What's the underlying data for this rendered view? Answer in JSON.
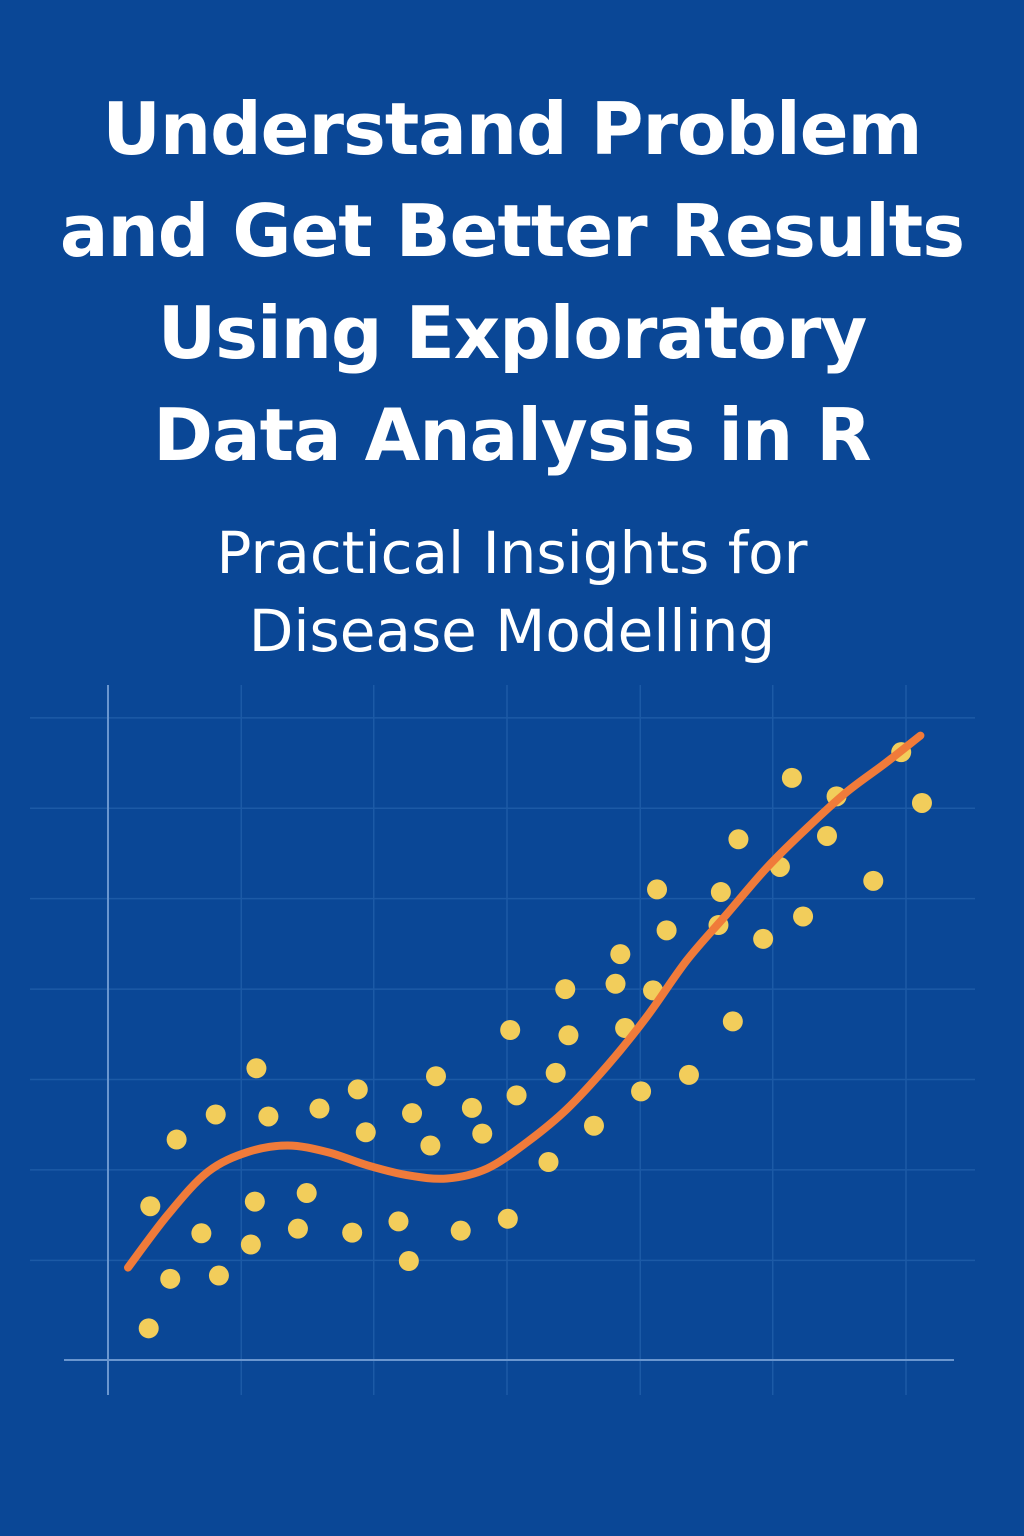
{
  "title_lines": [
    "Understand Problem",
    "and Get Better Results",
    "Using Exploratory",
    "Data Analysis in R"
  ],
  "subtitle_lines": [
    "Practical Insights for",
    "Disease Modelling"
  ],
  "colors": {
    "background": "#0a4796",
    "grid": "#1c5aa6",
    "axis": "#6a96cf",
    "points": "#f2cd5b",
    "trend": "#f07b3a",
    "text": "#ffffff"
  },
  "chart_data": {
    "type": "scatter",
    "title": "",
    "xlabel": "",
    "ylabel": "",
    "xlim": [
      0,
      100
    ],
    "ylim": [
      0,
      100
    ],
    "grid": true,
    "x_grid_values": [
      16.7,
      33.3,
      50,
      66.7,
      83.3,
      100
    ],
    "y_grid_values": [
      15.1,
      28.8,
      42.5,
      56.2,
      69.9,
      83.6,
      97.3
    ],
    "series": [
      {
        "name": "observations",
        "kind": "points",
        "points": [
          [
            5.3,
            23.3
          ],
          [
            5.1,
            4.8
          ],
          [
            7.8,
            12.3
          ],
          [
            8.6,
            33.4
          ],
          [
            11.7,
            19.2
          ],
          [
            13.5,
            37.2
          ],
          [
            13.9,
            12.8
          ],
          [
            17.9,
            17.5
          ],
          [
            18.4,
            24.0
          ],
          [
            18.6,
            44.2
          ],
          [
            20.1,
            36.9
          ],
          [
            23.8,
            19.9
          ],
          [
            24.9,
            25.3
          ],
          [
            26.5,
            38.1
          ],
          [
            30.6,
            19.3
          ],
          [
            31.3,
            41.0
          ],
          [
            32.3,
            34.5
          ],
          [
            36.4,
            21.0
          ],
          [
            37.7,
            15.0
          ],
          [
            38.1,
            37.4
          ],
          [
            40.4,
            32.5
          ],
          [
            41.1,
            43.0
          ],
          [
            44.2,
            19.6
          ],
          [
            45.6,
            38.2
          ],
          [
            46.9,
            34.3
          ],
          [
            50.1,
            21.4
          ],
          [
            50.4,
            50.0
          ],
          [
            51.2,
            40.1
          ],
          [
            55.2,
            30.0
          ],
          [
            56.1,
            43.5
          ],
          [
            57.3,
            56.2
          ],
          [
            57.7,
            49.2
          ],
          [
            60.9,
            35.5
          ],
          [
            63.6,
            57.0
          ],
          [
            64.2,
            61.5
          ],
          [
            64.8,
            50.3
          ],
          [
            66.8,
            40.7
          ],
          [
            68.3,
            56.0
          ],
          [
            68.8,
            71.3
          ],
          [
            70.0,
            65.1
          ],
          [
            72.8,
            43.2
          ],
          [
            76.5,
            65.9
          ],
          [
            76.8,
            70.9
          ],
          [
            78.3,
            51.3
          ],
          [
            79.0,
            78.9
          ],
          [
            82.1,
            63.8
          ],
          [
            84.2,
            74.7
          ],
          [
            85.7,
            88.2
          ],
          [
            87.1,
            67.2
          ],
          [
            90.1,
            79.4
          ],
          [
            91.3,
            85.4
          ],
          [
            95.9,
            72.6
          ],
          [
            99.4,
            92.1
          ],
          [
            102.0,
            84.4
          ]
        ]
      },
      {
        "name": "smoothed trend",
        "kind": "line",
        "points": [
          [
            2.5,
            14.0
          ],
          [
            7.5,
            22.0
          ],
          [
            12.5,
            28.5
          ],
          [
            17.5,
            31.5
          ],
          [
            22.5,
            32.5
          ],
          [
            27.5,
            31.5
          ],
          [
            32.5,
            29.5
          ],
          [
            37.5,
            28.0
          ],
          [
            42.5,
            27.5
          ],
          [
            47.5,
            29.0
          ],
          [
            52.5,
            33.0
          ],
          [
            57.5,
            38.0
          ],
          [
            62.5,
            44.5
          ],
          [
            67.5,
            52.0
          ],
          [
            72.5,
            60.5
          ],
          [
            77.5,
            67.5
          ],
          [
            82.5,
            74.5
          ],
          [
            87.5,
            80.5
          ],
          [
            92.5,
            86.0
          ],
          [
            97.5,
            90.5
          ],
          [
            101.8,
            94.6
          ]
        ]
      }
    ]
  }
}
